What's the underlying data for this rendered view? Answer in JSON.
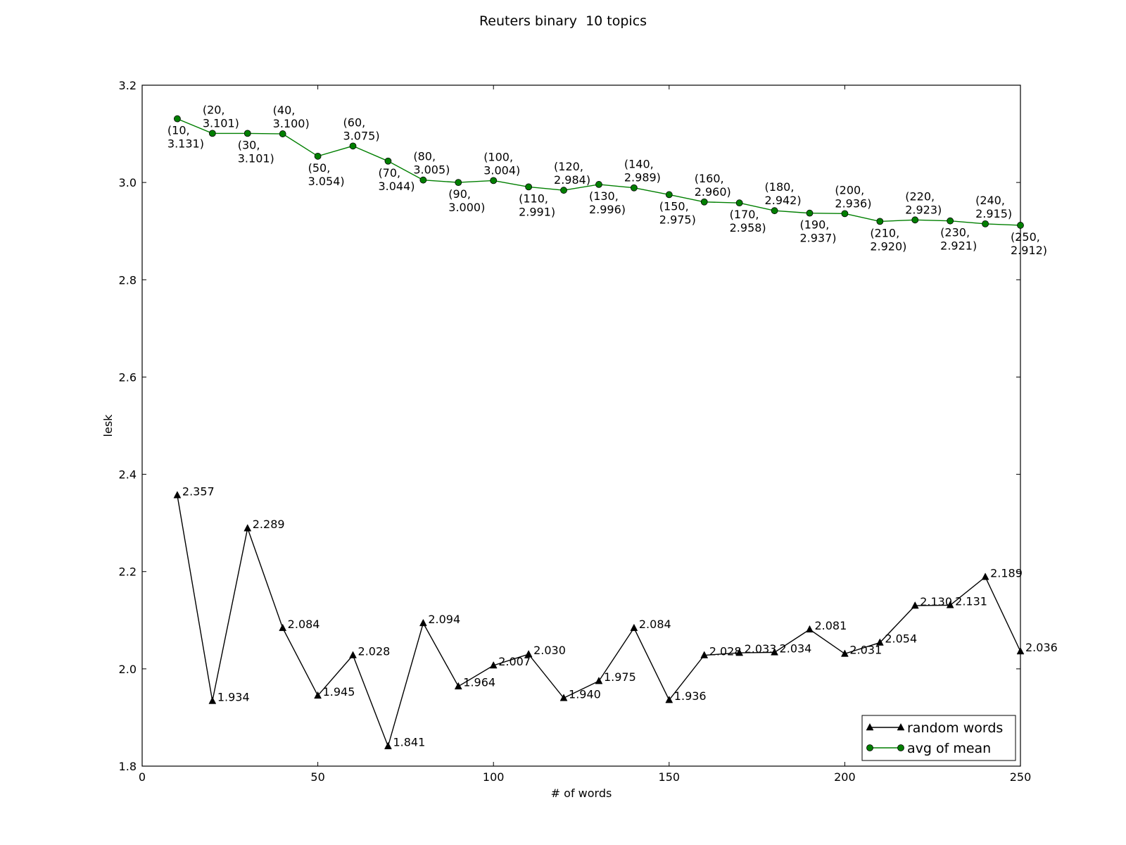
{
  "chart_data": {
    "type": "line",
    "title": "Reuters binary  10 topics",
    "xlabel": "# of words",
    "ylabel": "lesk",
    "xlim": [
      0,
      250
    ],
    "ylim": [
      1.8,
      3.2
    ],
    "xticks": [
      0,
      50,
      100,
      150,
      200,
      250
    ],
    "xtick_labels": [
      "0",
      "50",
      "100",
      "150",
      "200",
      "250"
    ],
    "yticks": [
      1.8,
      2.0,
      2.2,
      2.4,
      2.6,
      2.8,
      3.0,
      3.2
    ],
    "ytick_labels": [
      "1.8",
      "2.0",
      "2.2",
      "2.4",
      "2.6",
      "2.8",
      "3.0",
      "3.2"
    ],
    "grid": false,
    "legend_position": "lower-right",
    "x": [
      10,
      20,
      30,
      40,
      50,
      60,
      70,
      80,
      90,
      100,
      110,
      120,
      130,
      140,
      150,
      160,
      170,
      180,
      190,
      200,
      210,
      220,
      230,
      240,
      250
    ],
    "series": [
      {
        "name": "random words",
        "color": "#000000",
        "marker": "triangle",
        "values": [
          2.357,
          1.934,
          2.289,
          2.084,
          1.945,
          2.028,
          1.841,
          2.094,
          1.964,
          2.007,
          2.03,
          1.94,
          1.975,
          2.084,
          1.936,
          2.028,
          2.033,
          2.034,
          2.081,
          2.031,
          2.054,
          2.13,
          2.131,
          2.189,
          2.036
        ],
        "labels": [
          "2.357",
          "1.934",
          "2.289",
          "2.084",
          "1.945",
          "2.028",
          "1.841",
          "2.094",
          "1.964",
          "2.007",
          "2.030",
          "1.940",
          "1.975",
          "2.084",
          "1.936",
          "2.028",
          "2.033",
          "2.034",
          "2.081",
          "2.031",
          "2.054",
          "2.130",
          "2.131",
          "2.189",
          "2.036"
        ]
      },
      {
        "name": "avg of mean",
        "color": "#007f00",
        "marker": "circle",
        "values": [
          3.131,
          3.101,
          3.101,
          3.1,
          3.054,
          3.075,
          3.044,
          3.005,
          3.0,
          3.004,
          2.991,
          2.984,
          2.996,
          2.989,
          2.975,
          2.96,
          2.958,
          2.942,
          2.937,
          2.936,
          2.92,
          2.923,
          2.921,
          2.915,
          2.912
        ],
        "labels": [
          [
            "(10,",
            "3.131)"
          ],
          [
            "(20,",
            "3.101)"
          ],
          [
            "(30,",
            "3.101)"
          ],
          [
            "(40,",
            "3.100)"
          ],
          [
            "(50,",
            "3.054)"
          ],
          [
            "(60,",
            "3.075)"
          ],
          [
            "(70,",
            "3.044)"
          ],
          [
            "(80,",
            "3.005)"
          ],
          [
            "(90,",
            "3.000)"
          ],
          [
            "(100,",
            "3.004)"
          ],
          [
            "(110,",
            "2.991)"
          ],
          [
            "(120,",
            "2.984)"
          ],
          [
            "(130,",
            "2.996)"
          ],
          [
            "(140,",
            "2.989)"
          ],
          [
            "(150,",
            "2.975)"
          ],
          [
            "(160,",
            "2.960)"
          ],
          [
            "(170,",
            "2.958)"
          ],
          [
            "(180,",
            "2.942)"
          ],
          [
            "(190,",
            "2.937)"
          ],
          [
            "(200,",
            "2.936)"
          ],
          [
            "(210,",
            "2.920)"
          ],
          [
            "(220,",
            "2.923)"
          ],
          [
            "(230,",
            "2.921)"
          ],
          [
            "(240,",
            "2.915)"
          ],
          [
            "(250,",
            "2.912)"
          ]
        ]
      }
    ]
  }
}
